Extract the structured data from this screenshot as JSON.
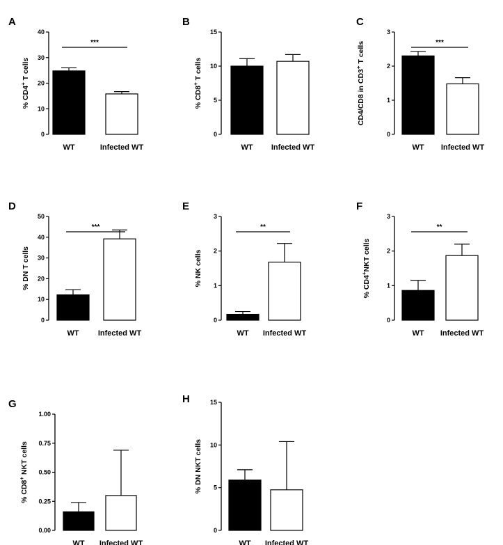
{
  "chart_data": [
    {
      "panel": "A",
      "type": "bar",
      "categories": [
        "WT",
        "Infected WT"
      ],
      "values": [
        24.8,
        15.8
      ],
      "errors": [
        1.2,
        0.9
      ],
      "ylabel_pre": "% CD4",
      "ylabel_sup": "+",
      "ylabel_post": " T cells",
      "ylim": [
        0,
        40
      ],
      "yticks": [
        0,
        10,
        20,
        30,
        40
      ],
      "tick_labels": [
        "0",
        "10",
        "20",
        "30",
        "40"
      ],
      "significance": "***"
    },
    {
      "panel": "B",
      "type": "bar",
      "categories": [
        "WT",
        "Infected WT"
      ],
      "values": [
        10.0,
        10.7
      ],
      "errors": [
        1.1,
        1.0
      ],
      "ylabel_pre": "% CD8",
      "ylabel_sup": "+",
      "ylabel_post": " T cells",
      "ylim": [
        0,
        15
      ],
      "yticks": [
        0,
        5,
        10,
        15
      ],
      "tick_labels": [
        "0",
        "5",
        "10",
        "15"
      ],
      "significance": ""
    },
    {
      "panel": "C",
      "type": "bar",
      "categories": [
        "WT",
        "Infected WT"
      ],
      "values": [
        2.3,
        1.48
      ],
      "errors": [
        0.13,
        0.18
      ],
      "ylabel_pre": "CD4/CD8 in CD3",
      "ylabel_sup": "+",
      "ylabel_post": " T cells",
      "ylim": [
        0,
        3
      ],
      "yticks": [
        0,
        1,
        2,
        3
      ],
      "tick_labels": [
        "0",
        "1",
        "2",
        "3"
      ],
      "significance": "***"
    },
    {
      "panel": "D",
      "type": "bar",
      "categories": [
        "WT",
        "Infected WT"
      ],
      "values": [
        12.2,
        39.2
      ],
      "errors": [
        2.5,
        4.3
      ],
      "ylabel_pre": "% DN T cells",
      "ylabel_sup": "",
      "ylabel_post": "",
      "ylim": [
        0,
        50
      ],
      "yticks": [
        0,
        10,
        20,
        30,
        40,
        50
      ],
      "tick_labels": [
        "0",
        "10",
        "20",
        "30",
        "40",
        "50"
      ],
      "significance": "***"
    },
    {
      "panel": "E",
      "type": "bar",
      "categories": [
        "WT",
        "Infected WT"
      ],
      "values": [
        0.17,
        1.68
      ],
      "errors": [
        0.08,
        0.54
      ],
      "ylabel_pre": "% NK cells",
      "ylabel_sup": "",
      "ylabel_post": "",
      "ylim": [
        0,
        3
      ],
      "yticks": [
        0,
        1,
        2,
        3
      ],
      "tick_labels": [
        "0",
        "1",
        "2",
        "3"
      ],
      "significance": "**"
    },
    {
      "panel": "F",
      "type": "bar",
      "categories": [
        "WT",
        "Infected WT"
      ],
      "values": [
        0.86,
        1.87
      ],
      "errors": [
        0.29,
        0.33
      ],
      "ylabel_pre": "% CD4",
      "ylabel_sup": "+",
      "ylabel_post": "NKT cells",
      "ylim": [
        0,
        3
      ],
      "yticks": [
        0,
        1,
        2,
        3
      ],
      "tick_labels": [
        "0",
        "1",
        "2",
        "3"
      ],
      "significance": "**"
    },
    {
      "panel": "G",
      "type": "bar",
      "categories": [
        "WT",
        "Infected WT"
      ],
      "values": [
        0.16,
        0.3
      ],
      "errors": [
        0.08,
        0.39
      ],
      "ylabel_pre": "% CD8",
      "ylabel_sup": "+",
      "ylabel_post": " NKT cells",
      "ylim": [
        0,
        1
      ],
      "yticks": [
        0,
        0.25,
        0.5,
        0.75,
        1.0
      ],
      "tick_labels": [
        "0.00",
        "0.25",
        "0.50",
        "0.75",
        "1.00"
      ],
      "significance": ""
    },
    {
      "panel": "H",
      "type": "bar",
      "categories": [
        "WT",
        "Infected WT"
      ],
      "values": [
        5.9,
        4.75
      ],
      "errors": [
        1.2,
        5.65
      ],
      "ylabel_pre": "% DN NKT cells",
      "ylabel_sup": "",
      "ylabel_post": "",
      "ylim": [
        0,
        15
      ],
      "yticks": [
        0,
        5,
        10,
        15
      ],
      "tick_labels": [
        "0",
        "5",
        "10",
        "15"
      ],
      "significance": ""
    }
  ],
  "colors": {
    "wt_bar": "#000000",
    "infected_bar": "#ffffff",
    "axis": "#000000"
  }
}
